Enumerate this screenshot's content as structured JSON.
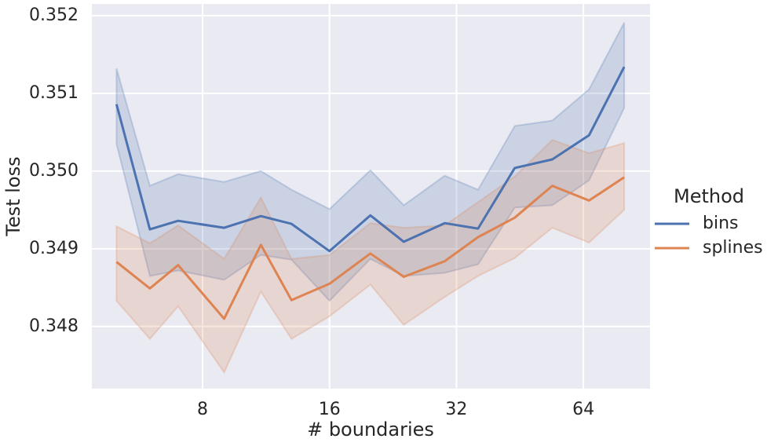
{
  "chart_data": {
    "type": "line",
    "xlabel": "# boundaries",
    "ylabel": "Test loss",
    "legend_title": "Method",
    "legend_position": "right",
    "grid": true,
    "xscale": "log2",
    "x": [
      5,
      6,
      7,
      9,
      11,
      13,
      16,
      20,
      24,
      30,
      36,
      44,
      54,
      66,
      80
    ],
    "xlim": [
      4.37,
      92.1
    ],
    "xticks": [
      8,
      16,
      32,
      64
    ],
    "ylim": [
      0.3472,
      0.35215
    ],
    "yticks": [
      0.348,
      0.349,
      {
        "value": 0.35,
        "label": "0.350"
      },
      0.351,
      0.352
    ],
    "series": [
      {
        "name": "bins",
        "color": "#4c72b0",
        "values": [
          0.35086,
          0.34925,
          0.34936,
          0.34927,
          0.34942,
          0.34932,
          0.34897,
          0.34943,
          0.34909,
          0.34933,
          0.34926,
          0.35004,
          0.35015,
          0.35046,
          0.35134
        ],
        "ci_upper": [
          0.35132,
          0.34981,
          0.34996,
          0.34986,
          0.35,
          0.34976,
          0.34951,
          0.35001,
          0.34956,
          0.34994,
          0.34976,
          0.35058,
          0.35065,
          0.35105,
          0.35191
        ],
        "ci_lower": [
          0.35035,
          0.34865,
          0.34872,
          0.3486,
          0.34892,
          0.34886,
          0.34833,
          0.34887,
          0.34865,
          0.34869,
          0.3488,
          0.34953,
          0.34956,
          0.34988,
          0.35081
        ]
      },
      {
        "name": "splines",
        "color": "#dd8452",
        "values": [
          0.34883,
          0.34849,
          0.34879,
          0.3481,
          0.34905,
          0.34834,
          0.34855,
          0.34894,
          0.34864,
          0.34884,
          0.34915,
          0.3494,
          0.34981,
          0.34962,
          0.34992
        ],
        "ci_upper": [
          0.34929,
          0.34907,
          0.3493,
          0.34887,
          0.34966,
          0.34887,
          0.34892,
          0.34933,
          0.34927,
          0.3493,
          0.3496,
          0.34993,
          0.3504,
          0.35023,
          0.35036
        ],
        "ci_lower": [
          0.34833,
          0.34784,
          0.34826,
          0.34741,
          0.34845,
          0.34784,
          0.34813,
          0.34854,
          0.34802,
          0.34838,
          0.34865,
          0.34888,
          0.34927,
          0.34908,
          0.3495
        ]
      }
    ]
  }
}
